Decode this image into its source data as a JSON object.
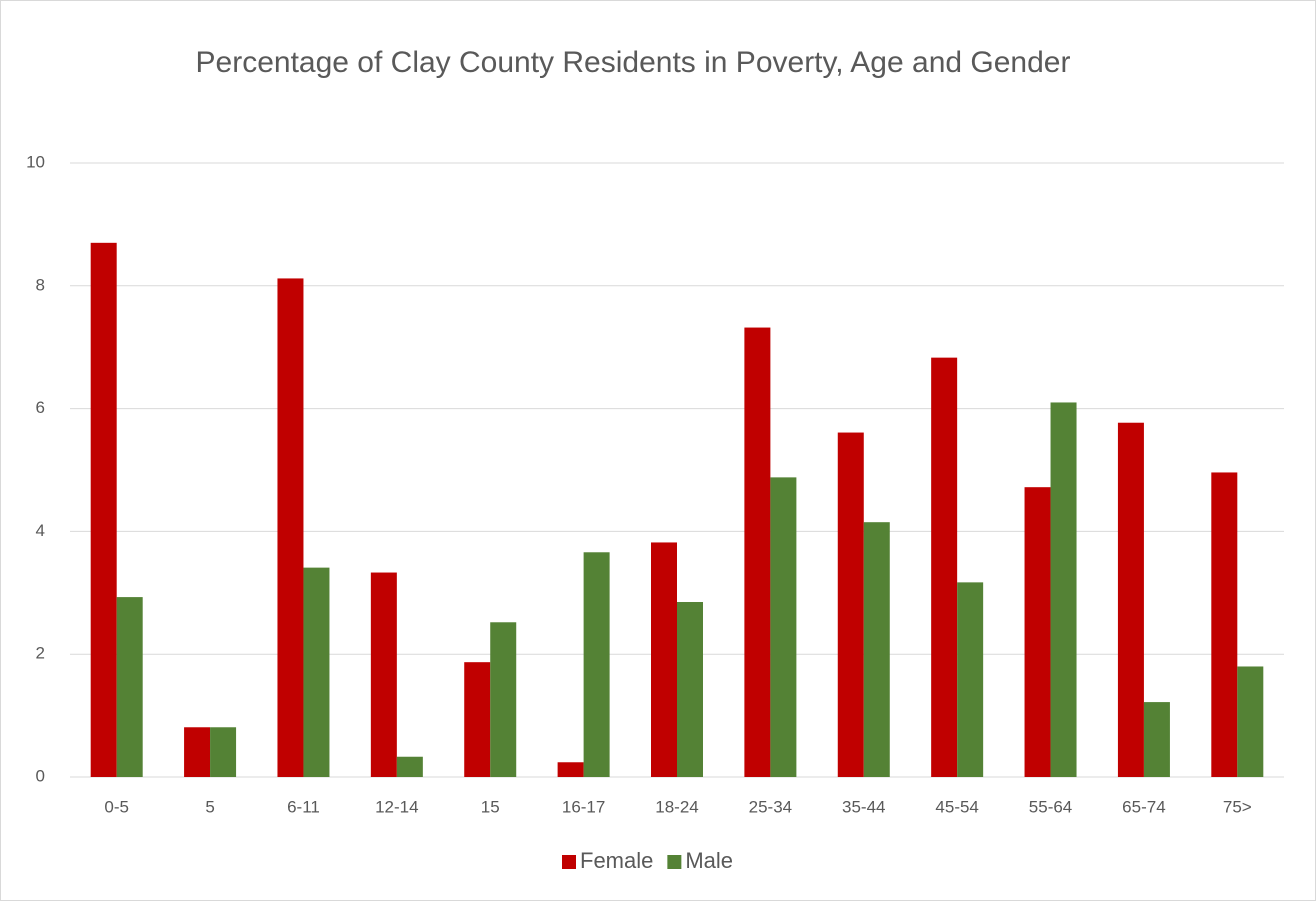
{
  "chart_data": {
    "type": "bar",
    "title": "Percentage of Clay County Residents in Poverty, Age and Gender",
    "categories": [
      "0-5",
      "5",
      "6-11",
      "12-14",
      "15",
      "16-17",
      "18-24",
      "25-34",
      "35-44",
      "45-54",
      "55-64",
      "65-74",
      "75>"
    ],
    "series": [
      {
        "name": "Female",
        "color": "#c00000",
        "values": [
          8.7,
          0.81,
          8.12,
          3.33,
          1.87,
          0.24,
          3.82,
          7.32,
          5.61,
          6.83,
          4.72,
          5.77,
          4.96
        ]
      },
      {
        "name": "Male",
        "color": "#548235",
        "values": [
          2.93,
          0.81,
          3.41,
          0.33,
          2.52,
          3.66,
          2.85,
          4.88,
          4.15,
          3.17,
          6.1,
          1.22,
          1.8
        ]
      }
    ],
    "ylim": [
      0,
      10
    ],
    "yticks": [
      0,
      2,
      4,
      6,
      8,
      10
    ],
    "grid": true,
    "legend": "bottom"
  }
}
